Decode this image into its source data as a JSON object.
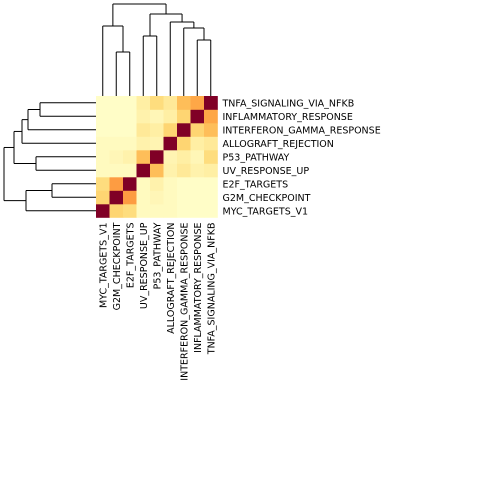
{
  "chart_data": {
    "type": "heatmap",
    "title": "",
    "xlabel": "",
    "ylabel": "",
    "legend": "none",
    "labels": [
      "MYC_TARGETS_V1",
      "G2M_CHECKPOINT",
      "E2F_TARGETS",
      "UV_RESPONSE_UP",
      "P53_PATHWAY",
      "ALLOGRAFT_REJECTION",
      "INTERFERON_GAMMA_RESPONSE",
      "INFLAMMATORY_RESPONSE",
      "TNFA_SIGNALING_VIA_NFKB"
    ],
    "matrix": [
      [
        1.0,
        0.35,
        0.3,
        0.05,
        0.05,
        0.05,
        0.02,
        0.02,
        0.02
      ],
      [
        0.35,
        1.0,
        0.6,
        0.05,
        0.08,
        0.05,
        0.02,
        0.02,
        0.02
      ],
      [
        0.3,
        0.6,
        1.0,
        0.05,
        0.12,
        0.05,
        0.02,
        0.02,
        0.02
      ],
      [
        0.05,
        0.05,
        0.05,
        1.0,
        0.45,
        0.12,
        0.2,
        0.12,
        0.15
      ],
      [
        0.05,
        0.08,
        0.12,
        0.45,
        1.0,
        0.1,
        0.15,
        0.08,
        0.3
      ],
      [
        0.05,
        0.05,
        0.05,
        0.12,
        0.1,
        1.0,
        0.35,
        0.15,
        0.2
      ],
      [
        0.02,
        0.02,
        0.02,
        0.2,
        0.15,
        0.35,
        1.0,
        0.35,
        0.45
      ],
      [
        0.02,
        0.02,
        0.02,
        0.12,
        0.08,
        0.15,
        0.35,
        1.0,
        0.55
      ],
      [
        0.02,
        0.02,
        0.02,
        0.15,
        0.3,
        0.2,
        0.45,
        0.55,
        1.0
      ]
    ],
    "value_range": [
      0,
      1
    ],
    "color_scale": [
      "#ffffcc",
      "#ffeda0",
      "#fed976",
      "#feb24c",
      "#fd8d3c",
      "#f03b20",
      "#800026"
    ],
    "dendrogram": {
      "merges": [
        [
          1,
          2,
          0.4
        ],
        [
          7,
          8,
          0.45
        ],
        [
          6,
          9,
          0.55
        ],
        [
          5,
          10,
          0.65
        ],
        [
          3,
          4,
          0.55
        ],
        [
          11,
          12,
          0.8
        ],
        [
          0,
          0,
          0
        ],
        [
          0,
          0,
          0
        ]
      ]
    }
  }
}
